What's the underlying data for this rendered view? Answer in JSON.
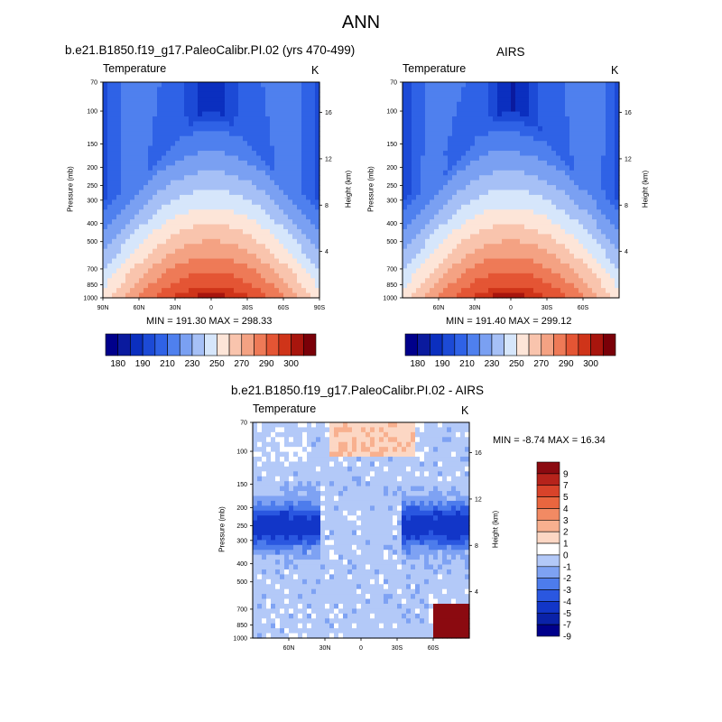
{
  "page": {
    "title": "ANN"
  },
  "colors": {
    "temperature_palette": [
      "#00008b",
      "#0a1a9e",
      "#0b2fbf",
      "#1c4ad6",
      "#2f62e6",
      "#4f80ee",
      "#7aa0f2",
      "#a6c0f6",
      "#d6e6fb",
      "#fde5d8",
      "#f9c4ad",
      "#f4a283",
      "#ee7a57",
      "#e45534",
      "#cf3419",
      "#a8150d",
      "#7a0008"
    ],
    "difference_palette": [
      "#00008b",
      "#0a22a8",
      "#1236c8",
      "#2a57e0",
      "#4d7cec",
      "#7ea2f3",
      "#b3c9f8",
      "#ffffff",
      "#fcd7c4",
      "#f8b08f",
      "#f28a63",
      "#e9663f",
      "#d8432a",
      "#b6231b",
      "#8b0a10"
    ]
  },
  "chart_data": [
    {
      "type": "heatmap",
      "id": "model",
      "title": "b.e21.B1850.f19_g17.PaleoCalibr.PI.02 (yrs 470-499)",
      "left_label": "Temperature",
      "right_label": "K",
      "ylabel": "Pressure (mb)",
      "right_axis_label": "Height (km)",
      "x_ticks": [
        "90N",
        "60N",
        "30N",
        "0",
        "30S",
        "60S",
        "90S"
      ],
      "x_values": [
        90,
        60,
        30,
        0,
        -30,
        -60,
        -90
      ],
      "xlim": [
        90,
        -90
      ],
      "y_ticks": [
        70,
        100,
        150,
        200,
        250,
        300,
        400,
        500,
        700,
        850,
        1000
      ],
      "ylim": [
        1000,
        70
      ],
      "height_ticks": [
        4,
        8,
        12,
        16
      ],
      "stats": "MIN = 191.30  MAX = 298.33",
      "min": 191.3,
      "max": 298.33,
      "colorbar_levels": [
        180,
        185,
        190,
        195,
        200,
        210,
        220,
        230,
        240,
        250,
        260,
        270,
        280,
        290,
        295,
        300
      ],
      "colorbar_labels": [
        "180",
        "190",
        "210",
        "230",
        "250",
        "270",
        "290",
        "300"
      ]
    },
    {
      "type": "heatmap",
      "id": "obs",
      "title": "AIRS",
      "left_label": "Temperature",
      "right_label": "K",
      "ylabel": "Pressure (mb)",
      "right_axis_label": "Height (km)",
      "x_ticks": [
        "60N",
        "30N",
        "0",
        "30S",
        "60S"
      ],
      "x_values": [
        60,
        30,
        0,
        -30,
        -60
      ],
      "xlim": [
        90,
        -90
      ],
      "y_ticks": [
        70,
        100,
        150,
        200,
        250,
        300,
        400,
        500,
        700,
        850,
        1000
      ],
      "ylim": [
        1000,
        70
      ],
      "height_ticks": [
        4,
        8,
        12,
        16
      ],
      "stats": "MIN = 191.40   MAX = 299.12",
      "min": 191.4,
      "max": 299.12,
      "colorbar_levels": [
        180,
        185,
        190,
        195,
        200,
        210,
        220,
        230,
        240,
        250,
        260,
        270,
        280,
        290,
        295,
        300
      ],
      "colorbar_labels": [
        "180",
        "190",
        "210",
        "230",
        "250",
        "270",
        "290",
        "300"
      ]
    },
    {
      "type": "heatmap",
      "id": "diff",
      "title": "b.e21.B1850.f19_g17.PaleoCalibr.PI.02 - AIRS",
      "left_label": "Temperature",
      "right_label": "K",
      "ylabel": "Pressure (mb)",
      "right_axis_label": "Height (km)",
      "x_ticks": [
        "60N",
        "30N",
        "0",
        "30S",
        "60S"
      ],
      "x_values": [
        60,
        30,
        0,
        -30,
        -60
      ],
      "xlim": [
        90,
        -90
      ],
      "y_ticks": [
        70,
        100,
        150,
        200,
        250,
        300,
        400,
        500,
        700,
        850,
        1000
      ],
      "ylim": [
        1000,
        70
      ],
      "height_ticks": [
        4,
        8,
        12,
        16
      ],
      "stats": "MIN =  -8.74   MAX =  16.34",
      "min": -8.74,
      "max": 16.34,
      "colorbar_labels": [
        "9",
        "7",
        "5",
        "4",
        "3",
        "2",
        "1",
        "0",
        "-1",
        "-2",
        "-3",
        "-4",
        "-5",
        "-7",
        "-9"
      ]
    }
  ]
}
